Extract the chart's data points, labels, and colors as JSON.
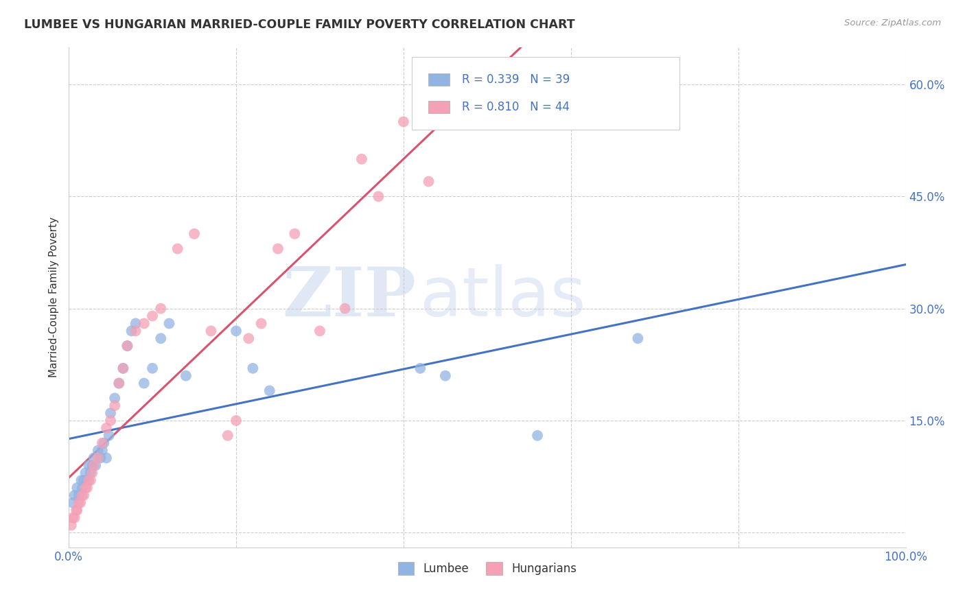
{
  "title": "LUMBEE VS HUNGARIAN MARRIED-COUPLE FAMILY POVERTY CORRELATION CHART",
  "source": "Source: ZipAtlas.com",
  "ylabel": "Married-Couple Family Poverty",
  "xlim": [
    0,
    1.0
  ],
  "ylim": [
    -0.02,
    0.65
  ],
  "xticks": [
    0.0,
    0.2,
    0.4,
    0.6,
    0.8,
    1.0
  ],
  "xticklabels": [
    "0.0%",
    "",
    "",
    "",
    "",
    "100.0%"
  ],
  "yticks": [
    0.0,
    0.15,
    0.3,
    0.45,
    0.6
  ],
  "yticklabels": [
    "",
    "15.0%",
    "30.0%",
    "45.0%",
    "60.0%"
  ],
  "lumbee_R": 0.339,
  "lumbee_N": 39,
  "hungarian_R": 0.81,
  "hungarian_N": 44,
  "lumbee_color": "#92b4e3",
  "hungarian_color": "#f4a0b5",
  "lumbee_line_color": "#4472c4",
  "hungarian_line_color": "#d9526e",
  "watermark_ZIP": "ZIP",
  "watermark_atlas": "atlas",
  "lumbee_x": [
    0.005,
    0.007,
    0.01,
    0.012,
    0.015,
    0.016,
    0.018,
    0.02,
    0.022,
    0.024,
    0.026,
    0.028,
    0.03,
    0.032,
    0.035,
    0.038,
    0.04,
    0.042,
    0.045,
    0.048,
    0.05,
    0.055,
    0.06,
    0.065,
    0.07,
    0.075,
    0.08,
    0.09,
    0.1,
    0.11,
    0.12,
    0.14,
    0.2,
    0.22,
    0.24,
    0.42,
    0.45,
    0.56,
    0.68
  ],
  "lumbee_y": [
    0.04,
    0.05,
    0.06,
    0.05,
    0.07,
    0.06,
    0.07,
    0.08,
    0.07,
    0.09,
    0.08,
    0.09,
    0.1,
    0.09,
    0.11,
    0.1,
    0.11,
    0.12,
    0.1,
    0.13,
    0.16,
    0.18,
    0.2,
    0.22,
    0.25,
    0.27,
    0.28,
    0.2,
    0.22,
    0.26,
    0.28,
    0.21,
    0.27,
    0.22,
    0.19,
    0.22,
    0.21,
    0.13,
    0.26
  ],
  "hungarian_x": [
    0.003,
    0.005,
    0.007,
    0.009,
    0.01,
    0.012,
    0.014,
    0.016,
    0.018,
    0.02,
    0.022,
    0.024,
    0.026,
    0.028,
    0.03,
    0.035,
    0.04,
    0.045,
    0.05,
    0.055,
    0.06,
    0.065,
    0.07,
    0.08,
    0.09,
    0.1,
    0.11,
    0.13,
    0.15,
    0.17,
    0.19,
    0.2,
    0.215,
    0.23,
    0.25,
    0.27,
    0.3,
    0.33,
    0.35,
    0.37,
    0.4,
    0.43,
    0.46,
    0.48
  ],
  "hungarian_y": [
    0.01,
    0.02,
    0.02,
    0.03,
    0.03,
    0.04,
    0.04,
    0.05,
    0.05,
    0.06,
    0.06,
    0.07,
    0.07,
    0.08,
    0.09,
    0.1,
    0.12,
    0.14,
    0.15,
    0.17,
    0.2,
    0.22,
    0.25,
    0.27,
    0.28,
    0.29,
    0.3,
    0.38,
    0.4,
    0.27,
    0.13,
    0.15,
    0.26,
    0.28,
    0.38,
    0.4,
    0.27,
    0.3,
    0.5,
    0.45,
    0.55,
    0.47,
    0.58,
    0.62
  ]
}
